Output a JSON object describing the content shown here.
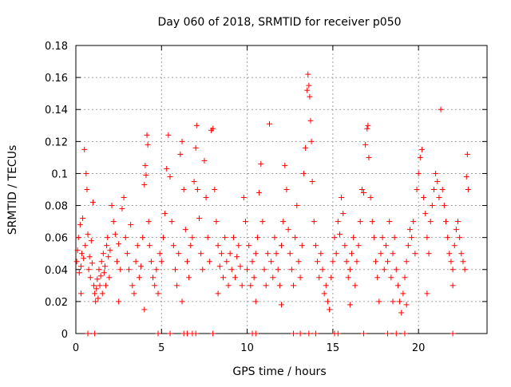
{
  "chart_data": {
    "type": "scatter",
    "title": "Day 060 of 2018, SRMTID for receiver p050",
    "xlabel": "GPS time / hours",
    "ylabel": "SRMTID / TECUs",
    "xlim": [
      0,
      24
    ],
    "ylim": [
      0,
      0.18
    ],
    "x_ticks": [
      0,
      5,
      10,
      15,
      20
    ],
    "x_tick_labels": [
      "0",
      "5",
      "10",
      "15",
      "20"
    ],
    "y_ticks": [
      0,
      0.02,
      0.04,
      0.06,
      0.08,
      0.1,
      0.12,
      0.14,
      0.16,
      0.18
    ],
    "y_tick_labels": [
      "0",
      "0.02",
      "0.04",
      "0.06",
      "0.08",
      "0.1",
      "0.12",
      "0.14",
      "0.16",
      "0.18"
    ],
    "grid": true,
    "marker": "+",
    "series_color": "#ff0000",
    "series": [
      {
        "name": "SRMTID",
        "points": [
          [
            0.05,
            0.045
          ],
          [
            0.1,
            0.052
          ],
          [
            0.15,
            0.06
          ],
          [
            0.2,
            0.038
          ],
          [
            0.25,
            0.068
          ],
          [
            0.3,
            0.042
          ],
          [
            0.35,
            0.05
          ],
          [
            0.4,
            0.072
          ],
          [
            0.45,
            0.047
          ],
          [
            0.5,
            0.115
          ],
          [
            0.55,
            0.055
          ],
          [
            0.6,
            0.1
          ],
          [
            0.65,
            0.09
          ],
          [
            0.7,
            0.062
          ],
          [
            0.75,
            0.04
          ],
          [
            0.8,
            0.048
          ],
          [
            0.85,
            0.035
          ],
          [
            0.9,
            0.058
          ],
          [
            0.95,
            0.044
          ],
          [
            1.0,
            0.082
          ],
          [
            1.05,
            0.03
          ],
          [
            1.1,
            0.025
          ],
          [
            1.15,
            0.02
          ],
          [
            1.2,
            0.028
          ],
          [
            1.25,
            0.034
          ],
          [
            1.3,
            0.022
          ],
          [
            1.35,
            0.04
          ],
          [
            1.4,
            0.03
          ],
          [
            1.45,
            0.036
          ],
          [
            1.5,
            0.045
          ],
          [
            1.55,
            0.025
          ],
          [
            1.6,
            0.05
          ],
          [
            1.65,
            0.038
          ],
          [
            1.7,
            0.042
          ],
          [
            1.75,
            0.03
          ],
          [
            1.8,
            0.055
          ],
          [
            1.85,
            0.06
          ],
          [
            1.9,
            0.048
          ],
          [
            1.95,
            0.035
          ],
          [
            2.0,
            0.052
          ],
          [
            2.1,
            0.08
          ],
          [
            2.2,
            0.07
          ],
          [
            2.3,
            0.062
          ],
          [
            2.4,
            0.045
          ],
          [
            2.5,
            0.056
          ],
          [
            2.6,
            0.04
          ],
          [
            2.7,
            0.078
          ],
          [
            2.8,
            0.085
          ],
          [
            2.9,
            0.06
          ],
          [
            3.0,
            0.05
          ],
          [
            3.1,
            0.04
          ],
          [
            3.2,
            0.068
          ],
          [
            3.3,
            0.03
          ],
          [
            3.4,
            0.025
          ],
          [
            3.5,
            0.045
          ],
          [
            3.6,
            0.055
          ],
          [
            3.7,
            0.035
          ],
          [
            3.8,
            0.042
          ],
          [
            3.9,
            0.06
          ],
          [
            4.0,
            0.093
          ],
          [
            4.05,
            0.105
          ],
          [
            4.1,
            0.099
          ],
          [
            4.15,
            0.124
          ],
          [
            4.2,
            0.118
          ],
          [
            4.25,
            0.07
          ],
          [
            4.3,
            0.055
          ],
          [
            4.4,
            0.045
          ],
          [
            4.5,
            0.035
          ],
          [
            4.6,
            0.03
          ],
          [
            4.7,
            0.04
          ],
          [
            4.8,
            0.025
          ],
          [
            4.9,
            0.05
          ],
          [
            5.0,
            0.045
          ],
          [
            5.1,
            0.06
          ],
          [
            5.2,
            0.075
          ],
          [
            5.3,
            0.103
          ],
          [
            5.4,
            0.124
          ],
          [
            5.5,
            0.098
          ],
          [
            5.6,
            0.07
          ],
          [
            5.7,
            0.055
          ],
          [
            5.8,
            0.04
          ],
          [
            5.9,
            0.03
          ],
          [
            6.0,
            0.05
          ],
          [
            6.1,
            0.112
          ],
          [
            6.2,
            0.12
          ],
          [
            6.3,
            0.09
          ],
          [
            6.4,
            0.065
          ],
          [
            6.5,
            0.045
          ],
          [
            6.6,
            0.035
          ],
          [
            6.7,
            0.055
          ],
          [
            6.8,
            0.06
          ],
          [
            6.9,
            0.095
          ],
          [
            7.0,
            0.116
          ],
          [
            7.05,
            0.13
          ],
          [
            7.1,
            0.09
          ],
          [
            7.2,
            0.072
          ],
          [
            7.3,
            0.05
          ],
          [
            7.4,
            0.04
          ],
          [
            7.5,
            0.108
          ],
          [
            7.6,
            0.085
          ],
          [
            7.7,
            0.06
          ],
          [
            7.8,
            0.045
          ],
          [
            7.9,
            0.127
          ],
          [
            8.0,
            0.128
          ],
          [
            8.1,
            0.09
          ],
          [
            8.2,
            0.07
          ],
          [
            8.3,
            0.055
          ],
          [
            8.4,
            0.042
          ],
          [
            8.5,
            0.05
          ],
          [
            8.6,
            0.035
          ],
          [
            8.7,
            0.06
          ],
          [
            8.8,
            0.045
          ],
          [
            8.9,
            0.03
          ],
          [
            9.0,
            0.05
          ],
          [
            9.1,
            0.04
          ],
          [
            9.2,
            0.06
          ],
          [
            9.3,
            0.035
          ],
          [
            9.4,
            0.048
          ],
          [
            9.5,
            0.055
          ],
          [
            9.6,
            0.042
          ],
          [
            9.7,
            0.03
          ],
          [
            9.8,
            0.085
          ],
          [
            9.9,
            0.07
          ],
          [
            10.0,
            0.04
          ],
          [
            10.1,
            0.055
          ],
          [
            10.2,
            0.03
          ],
          [
            10.3,
            0.045
          ],
          [
            10.4,
            0.035
          ],
          [
            10.5,
            0.05
          ],
          [
            10.6,
            0.06
          ],
          [
            10.7,
            0.088
          ],
          [
            10.8,
            0.106
          ],
          [
            10.9,
            0.07
          ],
          [
            11.0,
            0.04
          ],
          [
            11.1,
            0.03
          ],
          [
            11.2,
            0.05
          ],
          [
            11.3,
            0.131
          ],
          [
            11.4,
            0.045
          ],
          [
            11.5,
            0.035
          ],
          [
            11.6,
            0.06
          ],
          [
            11.7,
            0.05
          ],
          [
            11.8,
            0.04
          ],
          [
            11.9,
            0.03
          ],
          [
            12.0,
            0.055
          ],
          [
            12.1,
            0.07
          ],
          [
            12.2,
            0.105
          ],
          [
            12.3,
            0.09
          ],
          [
            12.4,
            0.065
          ],
          [
            12.5,
            0.05
          ],
          [
            12.6,
            0.04
          ],
          [
            12.7,
            0.03
          ],
          [
            12.8,
            0.06
          ],
          [
            12.9,
            0.08
          ],
          [
            13.0,
            0.045
          ],
          [
            13.1,
            0.035
          ],
          [
            13.2,
            0.055
          ],
          [
            13.3,
            0.1
          ],
          [
            13.4,
            0.116
          ],
          [
            13.5,
            0.152
          ],
          [
            13.55,
            0.162
          ],
          [
            13.6,
            0.155
          ],
          [
            13.65,
            0.148
          ],
          [
            13.7,
            0.133
          ],
          [
            13.75,
            0.12
          ],
          [
            13.8,
            0.095
          ],
          [
            13.9,
            0.07
          ],
          [
            14.0,
            0.055
          ],
          [
            14.1,
            0.045
          ],
          [
            14.2,
            0.035
          ],
          [
            14.3,
            0.05
          ],
          [
            14.4,
            0.04
          ],
          [
            14.5,
            0.025
          ],
          [
            14.6,
            0.03
          ],
          [
            14.7,
            0.02
          ],
          [
            14.8,
            0.015
          ],
          [
            14.9,
            0.035
          ],
          [
            15.0,
            0.045
          ],
          [
            15.1,
            0.06
          ],
          [
            15.2,
            0.05
          ],
          [
            15.3,
            0.07
          ],
          [
            15.4,
            0.062
          ],
          [
            15.5,
            0.085
          ],
          [
            15.6,
            0.075
          ],
          [
            15.7,
            0.055
          ],
          [
            15.8,
            0.045
          ],
          [
            15.9,
            0.035
          ],
          [
            16.0,
            0.04
          ],
          [
            16.1,
            0.05
          ],
          [
            16.2,
            0.06
          ],
          [
            16.3,
            0.03
          ],
          [
            16.4,
            0.045
          ],
          [
            16.5,
            0.055
          ],
          [
            16.6,
            0.07
          ],
          [
            16.7,
            0.09
          ],
          [
            16.8,
            0.088
          ],
          [
            16.9,
            0.118
          ],
          [
            17.0,
            0.128
          ],
          [
            17.05,
            0.13
          ],
          [
            17.1,
            0.11
          ],
          [
            17.2,
            0.085
          ],
          [
            17.3,
            0.07
          ],
          [
            17.4,
            0.06
          ],
          [
            17.5,
            0.045
          ],
          [
            17.6,
            0.035
          ],
          [
            17.7,
            0.02
          ],
          [
            17.8,
            0.05
          ],
          [
            17.9,
            0.06
          ],
          [
            18.0,
            0.04
          ],
          [
            18.1,
            0.055
          ],
          [
            18.2,
            0.045
          ],
          [
            18.3,
            0.07
          ],
          [
            18.4,
            0.035
          ],
          [
            18.5,
            0.05
          ],
          [
            18.6,
            0.06
          ],
          [
            18.7,
            0.04
          ],
          [
            18.8,
            0.03
          ],
          [
            18.9,
            0.02
          ],
          [
            19.0,
            0.013
          ],
          [
            19.1,
            0.025
          ],
          [
            19.2,
            0.035
          ],
          [
            19.3,
            0.045
          ],
          [
            19.4,
            0.055
          ],
          [
            19.5,
            0.065
          ],
          [
            19.6,
            0.06
          ],
          [
            19.7,
            0.07
          ],
          [
            19.8,
            0.05
          ],
          [
            19.9,
            0.09
          ],
          [
            20.0,
            0.1
          ],
          [
            20.1,
            0.11
          ],
          [
            20.2,
            0.115
          ],
          [
            20.3,
            0.085
          ],
          [
            20.4,
            0.075
          ],
          [
            20.5,
            0.06
          ],
          [
            20.6,
            0.05
          ],
          [
            20.7,
            0.07
          ],
          [
            20.8,
            0.08
          ],
          [
            20.9,
            0.09
          ],
          [
            21.0,
            0.1
          ],
          [
            21.1,
            0.095
          ],
          [
            21.2,
            0.085
          ],
          [
            21.3,
            0.14
          ],
          [
            21.4,
            0.09
          ],
          [
            21.5,
            0.08
          ],
          [
            21.6,
            0.07
          ],
          [
            21.7,
            0.06
          ],
          [
            21.8,
            0.05
          ],
          [
            21.9,
            0.045
          ],
          [
            22.0,
            0.04
          ],
          [
            22.1,
            0.055
          ],
          [
            22.2,
            0.065
          ],
          [
            22.3,
            0.07
          ],
          [
            22.4,
            0.06
          ],
          [
            22.5,
            0.05
          ],
          [
            22.6,
            0.045
          ],
          [
            22.7,
            0.04
          ],
          [
            22.8,
            0.098
          ],
          [
            22.85,
            0.112
          ],
          [
            22.9,
            0.09
          ],
          [
            0.3,
            0.025
          ],
          [
            2.5,
            0.02
          ],
          [
            4.0,
            0.015
          ],
          [
            6.2,
            0.02
          ],
          [
            8.3,
            0.025
          ],
          [
            10.5,
            0.02
          ],
          [
            12.0,
            0.018
          ],
          [
            16.0,
            0.018
          ],
          [
            18.5,
            0.02
          ],
          [
            20.5,
            0.025
          ],
          [
            22.0,
            0.03
          ],
          [
            19.3,
            0.018
          ]
        ]
      }
    ],
    "zero_points_x": [
      0.7,
      1.1,
      4.8,
      5.5,
      6.3,
      6.5,
      6.8,
      7.0,
      8.0,
      10.3,
      10.5,
      12.7,
      13.1,
      13.6,
      14.0,
      15.1,
      15.3,
      16.8,
      18.2,
      18.7,
      19.2,
      22.0
    ]
  }
}
